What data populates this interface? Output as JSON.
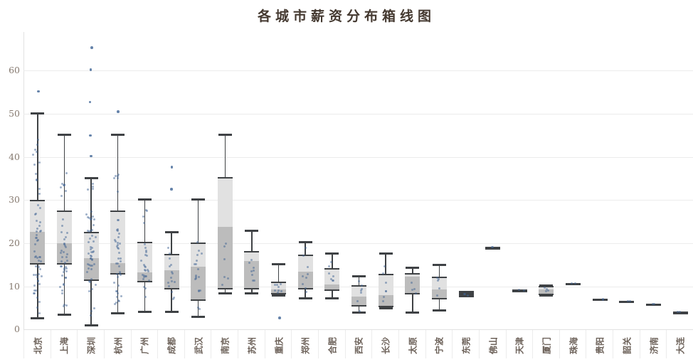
{
  "chart_data": {
    "type": "boxplot",
    "title": "各城市薪资分布箱线图",
    "xlabel": "",
    "ylabel": "",
    "ylim": [
      0,
      69
    ],
    "yticks": [
      0,
      10,
      20,
      30,
      40,
      50,
      60
    ],
    "grid": true,
    "legend": "none",
    "categories": [
      "北京",
      "上海",
      "深圳",
      "杭州",
      "广州",
      "成都",
      "武汉",
      "南京",
      "苏州",
      "重庆",
      "郑州",
      "合肥",
      "西安",
      "长沙",
      "太原",
      "宁波",
      "东莞",
      "佛山",
      "天津",
      "厦门",
      "珠海",
      "贵阳",
      "韶关",
      "济南",
      "大连"
    ],
    "boxes": [
      {
        "city": "北京",
        "low": 2.6,
        "q1": 15.0,
        "median": 22.6,
        "q3": 30.1,
        "high": 50.0,
        "outliers": [
          55.2
        ],
        "points": [
          {
            "n": 45,
            "min": 3.0,
            "max": 30.0
          },
          {
            "n": 12,
            "min": 30.0,
            "max": 49.0
          }
        ]
      },
      {
        "city": "上海",
        "low": 3.5,
        "q1": 15.0,
        "median": 20.0,
        "q3": 27.6,
        "high": 45.2,
        "outliers": [],
        "points": [
          {
            "n": 38,
            "min": 3.5,
            "max": 28.0
          },
          {
            "n": 8,
            "min": 28.0,
            "max": 38.0
          }
        ]
      },
      {
        "city": "深圳",
        "low": 1.0,
        "q1": 11.2,
        "median": 16.5,
        "q3": 22.7,
        "high": 35.1,
        "outliers": [
          40.2,
          45.0,
          52.7,
          60.2,
          65.3
        ],
        "points": [
          {
            "n": 48,
            "min": 1.0,
            "max": 30.0
          },
          {
            "n": 4,
            "min": 30.0,
            "max": 35.0
          }
        ]
      },
      {
        "city": "杭州",
        "low": 3.8,
        "q1": 12.8,
        "median": 15.4,
        "q3": 27.6,
        "high": 45.2,
        "outliers": [
          50.5
        ],
        "points": [
          {
            "n": 38,
            "min": 3.0,
            "max": 28.0
          },
          {
            "n": 6,
            "min": 28.0,
            "max": 38.0
          }
        ]
      },
      {
        "city": "广州",
        "low": 4.1,
        "q1": 10.9,
        "median": 13.2,
        "q3": 20.3,
        "high": 30.2,
        "outliers": [],
        "points": [
          {
            "n": 24,
            "min": 4.0,
            "max": 22.0
          },
          {
            "n": 4,
            "min": 22.0,
            "max": 30.0
          }
        ]
      },
      {
        "city": "成都",
        "low": 4.1,
        "q1": 9.2,
        "median": 13.8,
        "q3": 17.6,
        "high": 22.6,
        "outliers": [
          32.5,
          37.6
        ],
        "points": [
          {
            "n": 15,
            "min": 4.0,
            "max": 22.5
          }
        ]
      },
      {
        "city": "武汉",
        "low": 3.0,
        "q1": 6.6,
        "median": 14.5,
        "q3": 20.1,
        "high": 30.1,
        "outliers": [],
        "points": [
          {
            "n": 18,
            "min": 3.0,
            "max": 22.0
          }
        ]
      },
      {
        "city": "南京",
        "low": 8.3,
        "q1": 9.3,
        "median": 23.8,
        "q3": 35.3,
        "high": 45.2,
        "outliers": [],
        "points": [
          {
            "n": 6,
            "min": 8.5,
            "max": 24.0
          }
        ]
      },
      {
        "city": "苏州",
        "low": 8.3,
        "q1": 9.2,
        "median": 15.9,
        "q3": 18.1,
        "high": 22.8,
        "outliers": [],
        "points": [
          {
            "n": 8,
            "min": 8.3,
            "max": 20.0
          }
        ]
      },
      {
        "city": "重庆",
        "low": 7.8,
        "q1": 8.2,
        "median": 9.2,
        "q3": 11.1,
        "high": 15.1,
        "outliers": [
          2.7
        ],
        "points": [
          {
            "n": 8,
            "min": 8.0,
            "max": 12.0
          }
        ]
      },
      {
        "city": "郑州",
        "low": 7.2,
        "q1": 9.2,
        "median": 13.4,
        "q3": 17.4,
        "high": 20.3,
        "outliers": [],
        "points": [
          {
            "n": 9,
            "min": 7.2,
            "max": 20.0
          }
        ]
      },
      {
        "city": "合肥",
        "low": 7.2,
        "q1": 8.9,
        "median": 10.5,
        "q3": 14.2,
        "high": 17.6,
        "outliers": [],
        "points": [
          {
            "n": 7,
            "min": 7.2,
            "max": 17.5
          }
        ]
      },
      {
        "city": "西安",
        "low": 4.0,
        "q1": 5.3,
        "median": 7.6,
        "q3": 10.2,
        "high": 12.3,
        "outliers": [],
        "points": [
          {
            "n": 7,
            "min": 4.0,
            "max": 12.0
          }
        ]
      },
      {
        "city": "长沙",
        "low": 4.9,
        "q1": 5.1,
        "median": 8.0,
        "q3": 12.9,
        "high": 17.6,
        "outliers": [],
        "points": [
          {
            "n": 7,
            "min": 5.0,
            "max": 17.5
          }
        ]
      },
      {
        "city": "太原",
        "low": 4.0,
        "q1": 8.2,
        "median": 12.3,
        "q3": 13.1,
        "high": 14.3,
        "outliers": [],
        "points": [
          {
            "n": 4,
            "min": 4.0,
            "max": 14.0
          }
        ]
      },
      {
        "city": "宁波",
        "low": 4.4,
        "q1": 6.9,
        "median": 9.2,
        "q3": 12.2,
        "high": 14.9,
        "outliers": [],
        "points": [
          {
            "n": 5,
            "min": 4.5,
            "max": 15.0
          }
        ]
      },
      {
        "city": "东莞",
        "low": 7.7,
        "q1": 7.8,
        "median": 8.2,
        "q3": 8.7,
        "high": 8.8,
        "outliers": [],
        "points": [
          {
            "n": 3,
            "min": 7.8,
            "max": 8.7
          }
        ]
      },
      {
        "city": "佛山",
        "low": 19.0,
        "q1": 19.0,
        "median": 19.0,
        "q3": 19.0,
        "high": 19.0,
        "outliers": [],
        "points": [
          {
            "n": 2,
            "min": 18.9,
            "max": 19.1
          }
        ]
      },
      {
        "city": "天津",
        "low": 9.1,
        "q1": 9.1,
        "median": 9.1,
        "q3": 9.1,
        "high": 9.1,
        "outliers": [],
        "points": [
          {
            "n": 2,
            "min": 9.0,
            "max": 9.2
          }
        ]
      },
      {
        "city": "厦门",
        "low": 7.9,
        "q1": 8.0,
        "median": 9.2,
        "q3": 10.1,
        "high": 10.2,
        "outliers": [],
        "points": [
          {
            "n": 4,
            "min": 8.0,
            "max": 10.2
          }
        ]
      },
      {
        "city": "珠海",
        "low": 10.6,
        "q1": 10.6,
        "median": 10.6,
        "q3": 10.6,
        "high": 10.6,
        "outliers": [],
        "points": [
          {
            "n": 2,
            "min": 10.5,
            "max": 10.7
          }
        ]
      },
      {
        "city": "贵阳",
        "low": 7.0,
        "q1": 7.0,
        "median": 7.0,
        "q3": 7.0,
        "high": 7.0,
        "outliers": [],
        "points": [
          {
            "n": 2,
            "min": 6.9,
            "max": 7.1
          }
        ]
      },
      {
        "city": "韶关",
        "low": 6.5,
        "q1": 6.5,
        "median": 6.5,
        "q3": 6.5,
        "high": 6.5,
        "outliers": [],
        "points": [
          {
            "n": 2,
            "min": 6.4,
            "max": 6.6
          }
        ]
      },
      {
        "city": "济南",
        "low": 5.9,
        "q1": 5.9,
        "median": 5.9,
        "q3": 5.9,
        "high": 5.9,
        "outliers": [],
        "points": [
          {
            "n": 2,
            "min": 5.8,
            "max": 6.0
          }
        ]
      },
      {
        "city": "大连",
        "low": 4.0,
        "q1": 4.0,
        "median": 4.0,
        "q3": 4.0,
        "high": 4.0,
        "outliers": [],
        "points": [
          {
            "n": 2,
            "min": 3.9,
            "max": 4.1
          }
        ]
      }
    ]
  },
  "colors": {
    "line": "#3f4245",
    "box_upper": "#e1e1e1",
    "box_lower": "#bcbcbc",
    "grid": "#ececec",
    "axis": "#e2e2e2",
    "dot": "rgba(64,100,147,0.5)",
    "outlier_dot": "rgba(58,96,146,0.78)",
    "title_text": "#443930",
    "ytick_text": "#85796f",
    "xtick_text": "#6e635b"
  }
}
